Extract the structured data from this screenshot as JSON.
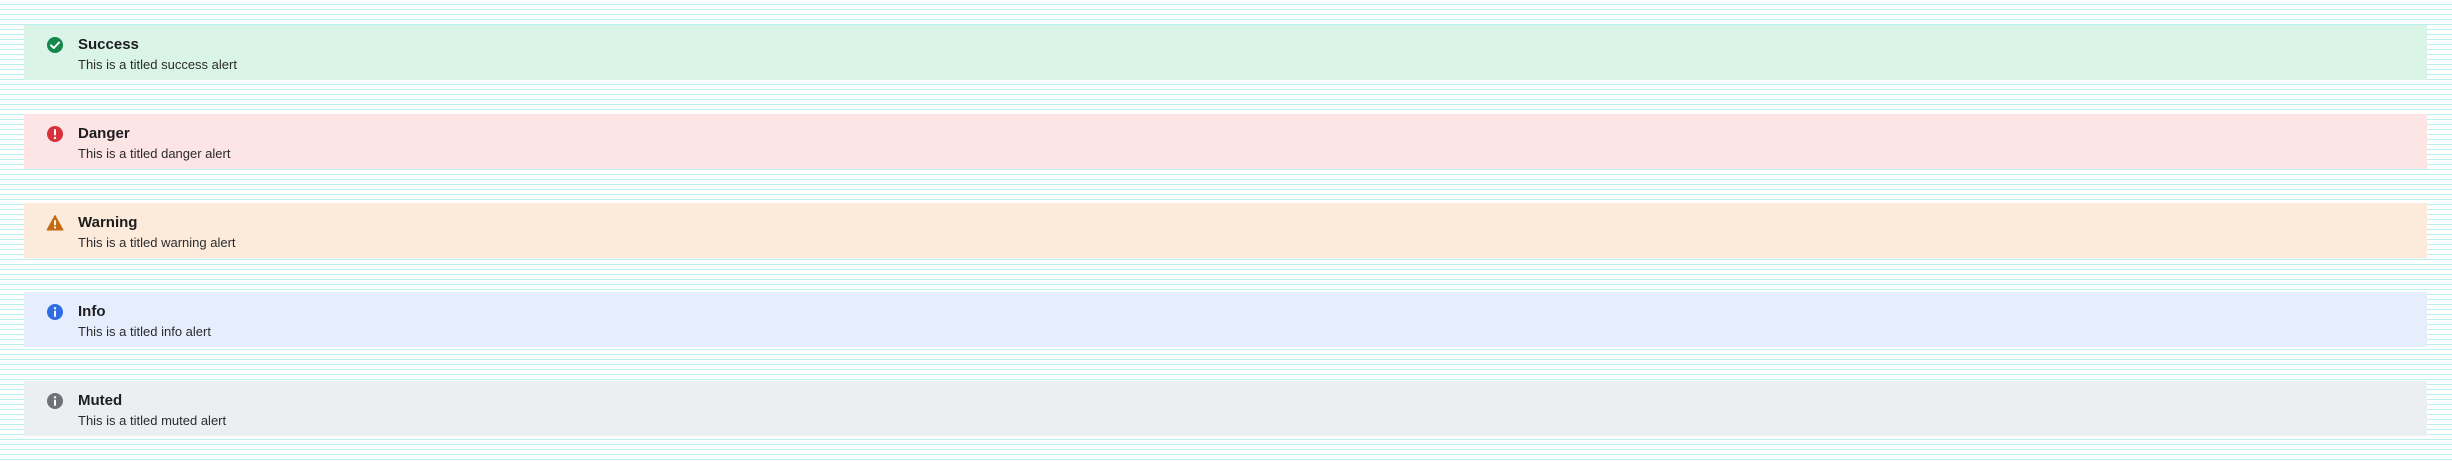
{
  "alerts": [
    {
      "kind": "success",
      "icon": "check-circle-icon",
      "color": "#14874a",
      "title": "Success",
      "message": "This is a titled success alert"
    },
    {
      "kind": "danger",
      "icon": "exclamation-circle-icon",
      "color": "#d9303a",
      "title": "Danger",
      "message": "This is a titled danger alert"
    },
    {
      "kind": "warning",
      "icon": "warning-triangle-icon",
      "color": "#c46a10",
      "title": "Warning",
      "message": "This is a titled warning alert"
    },
    {
      "kind": "info",
      "icon": "info-circle-icon",
      "color": "#2f6de0",
      "title": "Info",
      "message": "This is a titled info alert"
    },
    {
      "kind": "muted",
      "icon": "info-circle-icon",
      "color": "#6f7378",
      "title": "Muted",
      "message": "This is a titled muted alert"
    }
  ]
}
